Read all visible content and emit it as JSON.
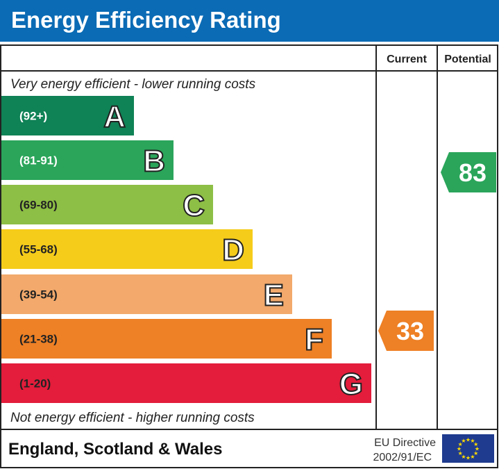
{
  "title": "Energy Efficiency Rating",
  "chart_data": {
    "type": "bar",
    "title": "Energy Efficiency Rating",
    "column_headers": [
      "Current",
      "Potential"
    ],
    "top_note": "Very energy efficient - lower running costs",
    "bottom_note": "Not energy efficient - higher running costs",
    "bands": [
      {
        "letter": "A",
        "range": "(92+)",
        "color": "#0f8256"
      },
      {
        "letter": "B",
        "range": "(81-91)",
        "color": "#2aa55a"
      },
      {
        "letter": "C",
        "range": "(69-80)",
        "color": "#8dbe45"
      },
      {
        "letter": "D",
        "range": "(55-68)",
        "color": "#f5cc1a"
      },
      {
        "letter": "E",
        "range": "(39-54)",
        "color": "#f2a96b"
      },
      {
        "letter": "F",
        "range": "(21-38)",
        "color": "#ee8025"
      },
      {
        "letter": "G",
        "range": "(1-20)",
        "color": "#e31d3b"
      }
    ],
    "current": {
      "value": 33,
      "band": "F",
      "color": "#ee8025"
    },
    "potential": {
      "value": 83,
      "band": "B",
      "color": "#2aa55a"
    }
  },
  "footer": {
    "region": "England, Scotland & Wales",
    "directive_line1": "EU Directive",
    "directive_line2": "2002/91/EC"
  }
}
